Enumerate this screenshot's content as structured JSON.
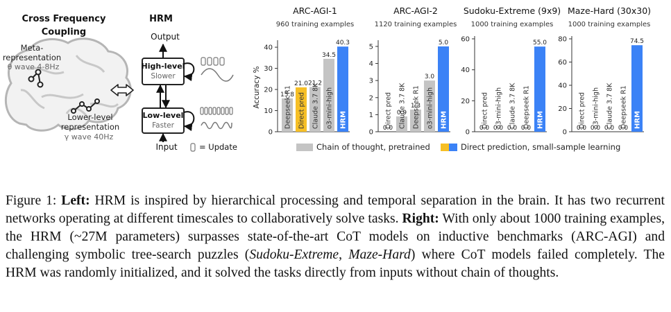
{
  "left": {
    "cfc_title_line1": "Cross Frequency",
    "cfc_title_line2": "Coupling",
    "meta_line1": "Meta-",
    "meta_line2": "representation",
    "theta": "θ wave 4-8Hz",
    "lower_line1": "Lower-level",
    "lower_line2": "representation",
    "gamma": "γ wave 40Hz",
    "hrm_title": "HRM",
    "output": "Output",
    "input": "Input",
    "high_level": "High-level",
    "slower": "Slower",
    "low_level": "Low-level",
    "faster": "Faster",
    "update_legend": "= Update",
    "brain_icon": "brain-icon",
    "swap_icon": "double-arrow-icon"
  },
  "colors": {
    "cot_gray": "#c4c4c4",
    "direct_yellow": "#f6bf26",
    "hrm_blue": "#3b82f6"
  },
  "legend": {
    "cot": "Chain of thought, pretrained",
    "direct": "Direct prediction, small-sample learning"
  },
  "chart_data": [
    {
      "type": "bar",
      "title": "ARC-AGI-1",
      "subtitle": "960 training examples",
      "ylabel": "Accuracy %",
      "ylim": [
        0,
        42
      ],
      "yticks": [
        0,
        10,
        20,
        30,
        40
      ],
      "categories": [
        "Deepseek R1",
        "Direct pred",
        "Claude 3.7 8K",
        "o3-mini-high",
        "HRM"
      ],
      "values": [
        15.8,
        21.0,
        21.2,
        34.5,
        40.3
      ],
      "value_labels": [
        "15.8",
        "21.0",
        "21.2",
        "34.5",
        "40.3"
      ],
      "kinds": [
        "cot",
        "direct",
        "cot",
        "cot",
        "hrm"
      ]
    },
    {
      "type": "bar",
      "title": "ARC-AGI-2",
      "subtitle": "1120 training examples",
      "ylabel": "",
      "ylim": [
        0,
        5.2
      ],
      "yticks": [
        0,
        1,
        2,
        3,
        4,
        5
      ],
      "categories": [
        "Direct pred",
        "Claude 3.7 8K",
        "Deepseek R1",
        "o3-mini-high",
        "HRM"
      ],
      "values": [
        0.0,
        0.9,
        1.3,
        3.0,
        5.0
      ],
      "value_labels": [
        "0.0",
        "0.9",
        "1.3",
        "3.0",
        "5.0"
      ],
      "kinds": [
        "direct",
        "cot",
        "cot",
        "cot",
        "hrm"
      ]
    },
    {
      "type": "bar",
      "title": "Sudoku-Extreme (9x9)",
      "subtitle": "1000 training examples",
      "ylabel": "",
      "ylim": [
        0,
        60
      ],
      "yticks": [
        0,
        20,
        40,
        60
      ],
      "categories": [
        "Direct pred",
        "o3-mini-high",
        "Claude 3.7 8K",
        "Deepseek R1",
        "HRM"
      ],
      "values": [
        0.0,
        0.0,
        0.0,
        0.0,
        55.0
      ],
      "value_labels": [
        "0.0",
        "0.0",
        "0.0",
        "0.0",
        "55.0"
      ],
      "kinds": [
        "direct",
        "cot",
        "cot",
        "cot",
        "hrm"
      ]
    },
    {
      "type": "bar",
      "title": "Maze-Hard (30x30)",
      "subtitle": "1000 training examples",
      "ylabel": "",
      "ylim": [
        0,
        80
      ],
      "yticks": [
        0,
        20,
        40,
        60,
        80
      ],
      "categories": [
        "Direct pred",
        "o3-mini-high",
        "Claude 3.7 8K",
        "Deepseek R1",
        "HRM"
      ],
      "values": [
        0.0,
        0.0,
        0.0,
        0.0,
        74.5
      ],
      "value_labels": [
        "0.0",
        "0.0",
        "0.0",
        "0.0",
        "74.5"
      ],
      "kinds": [
        "direct",
        "cot",
        "cot",
        "cot",
        "hrm"
      ]
    }
  ],
  "caption": {
    "fig_label": "Figure 1: ",
    "left_bold": "Left:",
    "left_text": " HRM is inspired by hierarchical processing and temporal separation in the brain. It has two recurrent networks operating at different timescales to collaboratively solve tasks. ",
    "right_bold": "Right:",
    "right_text_1": " With only about 1000 training examples, the HRM (~27M parameters) surpasses state-of-the-art CoT models on inductive benchmarks (ARC-AGI) and challenging symbolic tree-search puzzles (",
    "sudoku": "Sudoku-Extreme",
    "comma": ", ",
    "maze": "Maze-Hard",
    "right_text_2": ") where CoT models failed completely.  The HRM was randomly initialized, and it solved the tasks directly from inputs without chain of thoughts."
  }
}
